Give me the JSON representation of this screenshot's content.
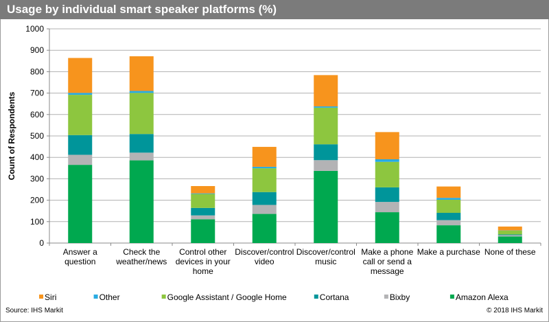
{
  "header": {
    "title": "Usage by individual smart speaker platforms (%)"
  },
  "footer": {
    "source": "Source: IHS Markit",
    "copyright": "© 2018 IHS Markit"
  },
  "chart_data": {
    "type": "bar",
    "stacked": true,
    "title": "Usage by individual smart speaker platforms (%)",
    "xlabel": "",
    "ylabel": "Count of Respondents",
    "ylim": [
      0,
      1000
    ],
    "yticks": [
      "0",
      "100",
      "200",
      "300",
      "400",
      "500",
      "600",
      "700",
      "800",
      "900",
      "1000"
    ],
    "grid": true,
    "legend_position": "bottom",
    "categories": [
      [
        "Answer a",
        "question"
      ],
      [
        "Check the",
        "weather/news"
      ],
      [
        "Control other",
        "devices in your",
        "home"
      ],
      [
        "Discover/control",
        "video"
      ],
      [
        "Discover/control",
        "music"
      ],
      [
        "Make a phone",
        "call or send a",
        "message"
      ],
      [
        "Make a purchase"
      ],
      [
        "None of these"
      ]
    ],
    "series": [
      {
        "name": "Amazon Alexa",
        "color": "#00a84f",
        "values": [
          365,
          386,
          111,
          136,
          337,
          144,
          83,
          31
        ]
      },
      {
        "name": "Bixby",
        "color": "#b3b3b5",
        "values": [
          47,
          36,
          18,
          42,
          50,
          48,
          24,
          6
        ]
      },
      {
        "name": "Cortana",
        "color": "#00959a",
        "values": [
          92,
          87,
          35,
          60,
          74,
          68,
          34,
          3
        ]
      },
      {
        "name": "Google Assistant / Google Home",
        "color": "#8dc63f",
        "values": [
          188,
          192,
          65,
          111,
          171,
          119,
          61,
          18
        ]
      },
      {
        "name": "Other",
        "color": "#29abe2",
        "values": [
          9,
          9,
          3,
          7,
          6,
          12,
          9,
          1
        ]
      },
      {
        "name": "Siri",
        "color": "#f7941d",
        "values": [
          163,
          162,
          34,
          93,
          146,
          127,
          53,
          18
        ]
      }
    ],
    "legend_order": [
      "Siri",
      "Other",
      "Google Assistant / Google Home",
      "Cortana",
      "Bixby",
      "Amazon Alexa"
    ]
  }
}
